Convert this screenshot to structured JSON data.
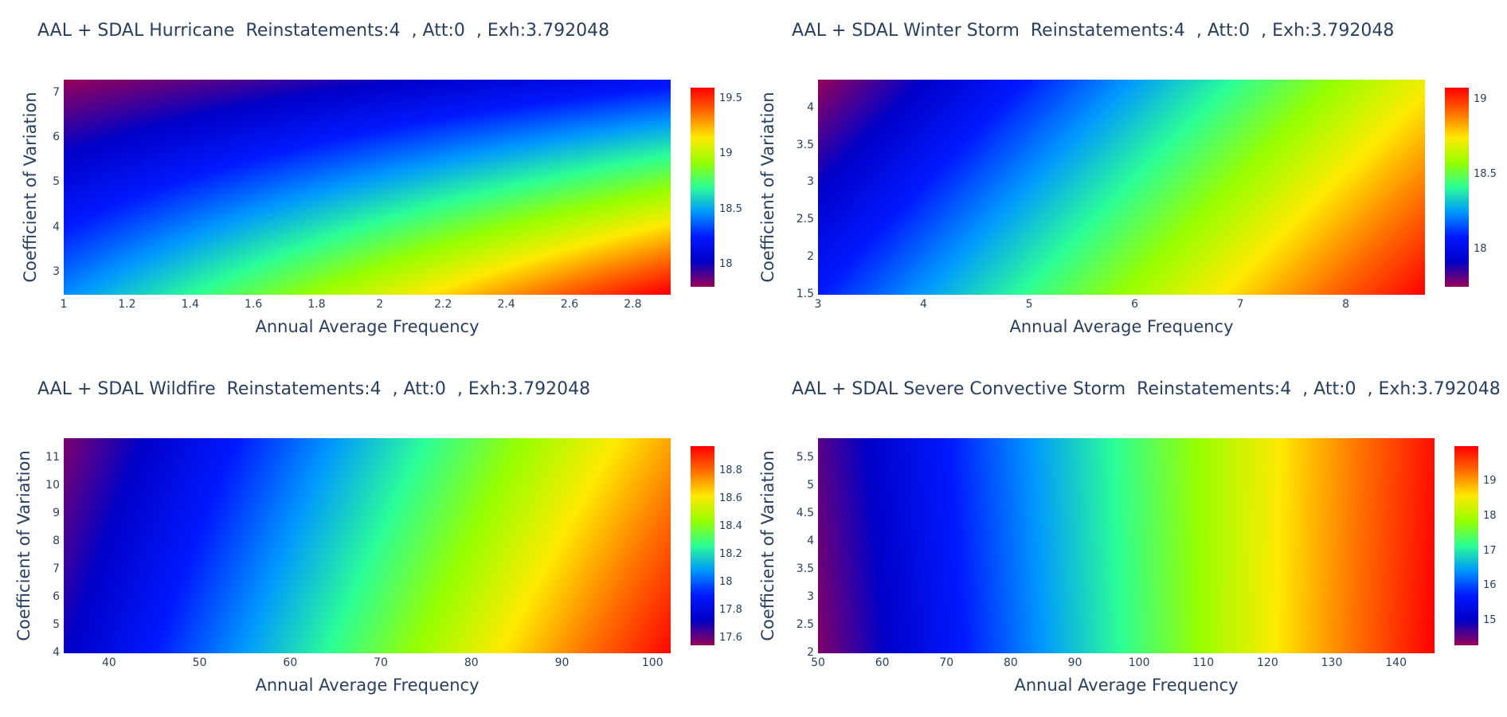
{
  "xaxis_title": "Annual Average Frequency",
  "yaxis_title": "Coefficient of Variation",
  "colorscale": "Rainbow",
  "colors": [
    "#96005a",
    "#0000c8",
    "#0019ff",
    "#0098ff",
    "#2cff96",
    "#97ff00",
    "#ffea00",
    "#ff6f00",
    "#ff0000"
  ],
  "chart_data": [
    {
      "type": "heatmap",
      "title": "AAL + SDAL Hurricane  Reinstatements:4  , Att:0  , Exh:3.792048",
      "xlabel": "Annual Average Frequency",
      "ylabel": "Coefficient of Variation",
      "xlim": [
        1,
        2.92
      ],
      "ylim": [
        2.5,
        7.3
      ],
      "x_ticks": [
        "1",
        "1.2",
        "1.4",
        "1.6",
        "1.8",
        "2",
        "2.2",
        "2.4",
        "2.6",
        "2.8"
      ],
      "y_ticks": [
        "3",
        "4",
        "5",
        "6",
        "7"
      ],
      "colorbar_range": [
        17.8,
        19.6
      ],
      "colorbar_ticks": [
        "18",
        "18.5",
        "19",
        "19.5"
      ],
      "z_corners": {
        "x_min_y_min": 18.45,
        "x_max_y_min": 19.62,
        "x_min_y_max": 17.8,
        "x_max_y_max": 18.2
      }
    },
    {
      "type": "heatmap",
      "title": "AAL + SDAL Winter Storm  Reinstatements:4  , Att:0  , Exh:3.792048",
      "xlabel": "Annual Average Frequency",
      "ylabel": "Coefficient of Variation",
      "xlim": [
        3,
        8.75
      ],
      "ylim": [
        1.5,
        4.38
      ],
      "x_ticks": [
        "3",
        "4",
        "5",
        "6",
        "7",
        "8"
      ],
      "y_ticks": [
        "1.5",
        "2",
        "2.5",
        "3",
        "3.5",
        "4"
      ],
      "colorbar_range": [
        17.75,
        19.08
      ],
      "colorbar_ticks": [
        "18",
        "18.5",
        "19"
      ],
      "z_corners": {
        "x_min_y_min": 18.08,
        "x_max_y_min": 19.08,
        "x_min_y_max": 17.75,
        "x_max_y_max": 18.72
      }
    },
    {
      "type": "heatmap",
      "title": "AAL + SDAL Wildfire  Reinstatements:4  , Att:0  , Exh:3.792048",
      "xlabel": "Annual Average Frequency",
      "ylabel": "Coefficient of Variation",
      "xlim": [
        35,
        102
      ],
      "ylim": [
        4,
        11.7
      ],
      "x_ticks": [
        "40",
        "50",
        "60",
        "70",
        "80",
        "90",
        "100"
      ],
      "y_ticks": [
        "4",
        "5",
        "6",
        "7",
        "8",
        "9",
        "10",
        "11"
      ],
      "colorbar_range": [
        17.55,
        18.98
      ],
      "colorbar_ticks": [
        "17.6",
        "17.8",
        "18",
        "18.2",
        "18.4",
        "18.6",
        "18.8"
      ],
      "z_corners": {
        "x_min_y_min": 17.72,
        "x_max_y_min": 18.97,
        "x_min_y_max": 17.58,
        "x_max_y_max": 18.72
      }
    },
    {
      "type": "heatmap",
      "title": "AAL + SDAL Severe Convective Storm  Reinstatements:4  , Att:0  , Exh:3.792048",
      "xlabel": "Annual Average Frequency",
      "ylabel": "Coefficient of Variation",
      "xlim": [
        50,
        146
      ],
      "ylim": [
        2,
        5.85
      ],
      "x_ticks": [
        "50",
        "60",
        "70",
        "80",
        "90",
        "100",
        "110",
        "120",
        "130",
        "140"
      ],
      "y_ticks": [
        "2",
        "2.5",
        "3",
        "3.5",
        "4",
        "4.5",
        "5",
        "5.5"
      ],
      "colorbar_range": [
        14.3,
        20.0
      ],
      "colorbar_ticks": [
        "15",
        "16",
        "17",
        "18",
        "19"
      ],
      "z_corners": {
        "x_min_y_min": 14.4,
        "x_max_y_min": 20.0,
        "x_min_y_max": 14.6,
        "x_max_y_max": 19.9
      }
    }
  ]
}
